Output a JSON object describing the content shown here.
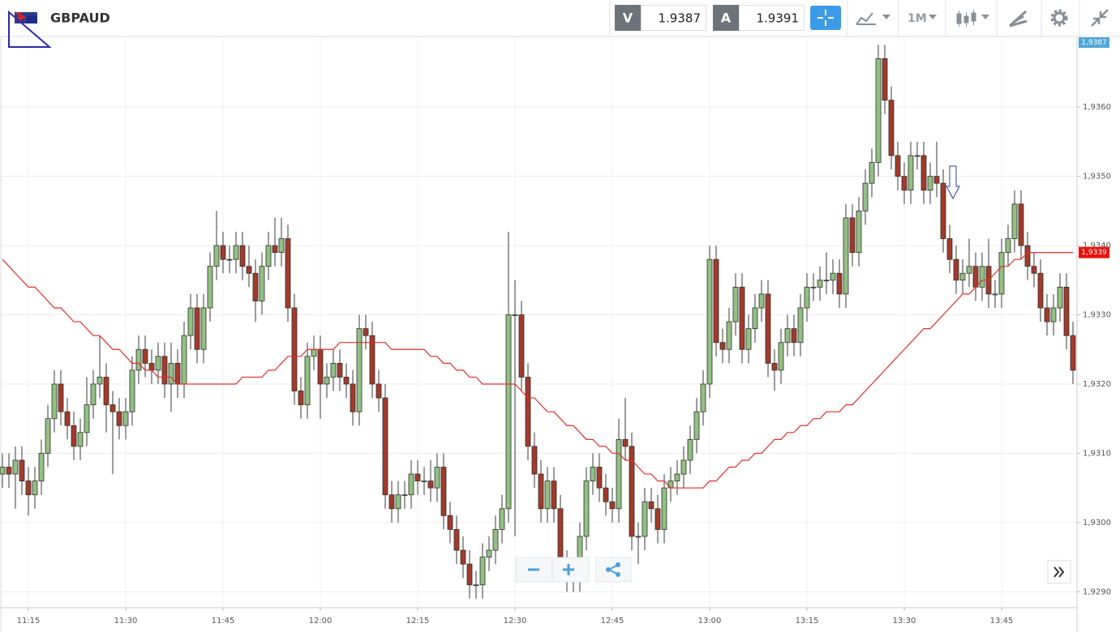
{
  "header": {
    "symbol": "GBPAUD",
    "bid_letter": "V",
    "bid": "1.9387",
    "ask_letter": "A",
    "ask": "1.9391",
    "timeframe": "1M"
  },
  "chart_data": {
    "type": "candlestick",
    "categories": [
      null,
      null,
      null,
      null,
      "11:15",
      null,
      null,
      null,
      null,
      null,
      null,
      null,
      null,
      null,
      null,
      null,
      null,
      null,
      null,
      "11:30",
      null,
      null,
      null,
      null,
      null,
      null,
      null,
      null,
      null,
      null,
      null,
      null,
      null,
      null,
      "11:45",
      null,
      null,
      null,
      null,
      null,
      null,
      null,
      null,
      null,
      null,
      null,
      null,
      null,
      null,
      "12:00",
      null,
      null,
      null,
      null,
      null,
      null,
      null,
      null,
      null,
      null,
      null,
      null,
      null,
      null,
      "12:15",
      null,
      null,
      null,
      null,
      null,
      null,
      null,
      null,
      null,
      null,
      null,
      null,
      null,
      null,
      "12:30",
      null,
      null,
      null,
      null,
      null,
      null,
      null,
      null,
      null,
      null,
      null,
      null,
      null,
      null,
      "12:45",
      null,
      null,
      null,
      null,
      null,
      null,
      null,
      null,
      null,
      null,
      null,
      null,
      null,
      null,
      "13:00",
      null,
      null,
      null,
      null,
      null,
      null,
      null,
      null,
      null,
      null,
      null,
      null,
      null,
      null,
      "13:15",
      null,
      null,
      null,
      null,
      null,
      null,
      null,
      null,
      null,
      null,
      null,
      null,
      null,
      null,
      "13:30",
      null,
      null,
      null,
      null,
      null,
      null,
      null,
      null,
      null,
      null,
      null,
      null,
      null,
      null,
      "13:45",
      null,
      null,
      null,
      null,
      null,
      null,
      null,
      null,
      null,
      null,
      null
    ],
    "open": [
      1.9307,
      1.9308,
      1.9307,
      1.9309,
      1.9306,
      1.9304,
      1.9306,
      1.931,
      1.9315,
      1.932,
      1.9316,
      1.9314,
      1.9311,
      1.9313,
      1.9317,
      1.932,
      1.9321,
      1.9317,
      1.9316,
      1.9314,
      1.9316,
      1.9322,
      1.9325,
      1.9323,
      1.9322,
      1.9324,
      1.932,
      1.9323,
      1.932,
      1.9327,
      1.9331,
      1.9325,
      1.9331,
      1.9337,
      1.934,
      1.9338,
      1.9338,
      1.934,
      1.9337,
      1.9336,
      1.9332,
      1.9337,
      1.934,
      1.9339,
      1.9341,
      1.9331,
      1.9319,
      1.9317,
      1.9324,
      1.9325,
      1.932,
      1.9321,
      1.9323,
      1.9321,
      1.932,
      1.9316,
      1.9328,
      1.9327,
      1.932,
      1.9318,
      1.9304,
      1.9302,
      1.9304,
      1.9304,
      1.9307,
      1.9306,
      1.9306,
      1.9305,
      1.9308,
      1.9301,
      1.9299,
      1.9296,
      1.9294,
      1.9291,
      1.9291,
      1.9295,
      1.9296,
      1.9299,
      1.9302,
      1.933,
      1.933,
      1.9321,
      1.9311,
      1.9307,
      1.9302,
      1.9306,
      1.9302,
      1.9294,
      1.9292,
      1.9292,
      1.9298,
      1.9306,
      1.9308,
      1.9305,
      1.9303,
      1.9302,
      1.9312,
      1.9311,
      1.9298,
      1.9298,
      1.9303,
      1.9302,
      1.9299,
      1.9305,
      1.9306,
      1.9307,
      1.9309,
      1.9312,
      1.9316,
      1.932,
      1.9338,
      1.9326,
      1.9325,
      1.9329,
      1.9334,
      1.9325,
      1.9328,
      1.9331,
      1.9333,
      1.9323,
      1.9322,
      1.9326,
      1.9328,
      1.9326,
      1.9331,
      1.9334,
      1.9334,
      1.9335,
      1.9335,
      1.9336,
      1.9333,
      1.9344,
      1.9339,
      1.9345,
      1.9349,
      1.9352,
      1.9367,
      1.9361,
      1.9353,
      1.935,
      1.9348,
      1.9353,
      1.9353,
      1.9348,
      1.935,
      1.9349,
      1.9341,
      1.9338,
      1.9335,
      1.9336,
      1.9337,
      1.9334,
      1.9337,
      1.9333,
      1.9333,
      1.9339,
      1.9341,
      1.9346,
      1.934,
      1.9337,
      1.9336,
      1.9331,
      1.9329,
      1.9331,
      1.9334,
      1.9327
    ],
    "high": [
      1.931,
      1.931,
      1.9311,
      1.9311,
      1.9308,
      1.9308,
      1.9312,
      1.9317,
      1.9322,
      1.9322,
      1.9318,
      1.9316,
      1.9315,
      1.9321,
      1.9322,
      1.9327,
      1.9323,
      1.9319,
      1.9318,
      1.9318,
      1.9324,
      1.9327,
      1.9327,
      1.9325,
      1.9326,
      1.9326,
      1.9326,
      1.9325,
      1.9329,
      1.9333,
      1.9333,
      1.9333,
      1.9339,
      1.9345,
      1.9342,
      1.934,
      1.9342,
      1.9342,
      1.934,
      1.9338,
      1.9339,
      1.9342,
      1.9344,
      1.9344,
      1.9343,
      1.9333,
      1.9321,
      1.9326,
      1.9327,
      1.9327,
      1.9323,
      1.9325,
      1.9325,
      1.9323,
      1.9322,
      1.933,
      1.933,
      1.9329,
      1.9322,
      1.932,
      1.9306,
      1.9306,
      1.9306,
      1.9309,
      1.9309,
      1.9308,
      1.9309,
      1.931,
      1.931,
      1.9303,
      1.9301,
      1.9298,
      1.9296,
      1.9293,
      1.9297,
      1.9298,
      1.9301,
      1.9304,
      1.9342,
      1.9335,
      1.9332,
      1.9323,
      1.9313,
      1.9309,
      1.9308,
      1.9308,
      1.9304,
      1.9296,
      1.9294,
      1.93,
      1.9308,
      1.931,
      1.931,
      1.9307,
      1.9305,
      1.9315,
      1.9318,
      1.9313,
      1.93,
      1.9305,
      1.9305,
      1.9304,
      1.9307,
      1.9308,
      1.9309,
      1.9311,
      1.9314,
      1.9318,
      1.9322,
      1.934,
      1.934,
      1.9328,
      1.9331,
      1.9336,
      1.9336,
      1.933,
      1.9333,
      1.9335,
      1.9335,
      1.9325,
      1.9328,
      1.933,
      1.933,
      1.9333,
      1.9336,
      1.9336,
      1.9337,
      1.9339,
      1.9338,
      1.9338,
      1.9346,
      1.9346,
      1.9347,
      1.9351,
      1.9354,
      1.9369,
      1.9369,
      1.9363,
      1.9355,
      1.9352,
      1.9355,
      1.9355,
      1.9355,
      1.9352,
      1.9355,
      1.9351,
      1.9343,
      1.934,
      1.9338,
      1.9341,
      1.9339,
      1.9339,
      1.9341,
      1.9335,
      1.9341,
      1.9343,
      1.9348,
      1.9348,
      1.9342,
      1.9339,
      1.9338,
      1.9333,
      1.9333,
      1.9336,
      1.9336,
      1.9329
    ],
    "low": [
      1.9305,
      1.9305,
      1.9302,
      1.9304,
      1.9301,
      1.9302,
      1.9304,
      1.9308,
      1.9313,
      1.9314,
      1.9312,
      1.9309,
      1.9309,
      1.9311,
      1.9315,
      1.9318,
      1.9313,
      1.9307,
      1.9312,
      1.9312,
      1.9314,
      1.932,
      1.9321,
      1.932,
      1.932,
      1.9318,
      1.9316,
      1.9318,
      1.9318,
      1.9325,
      1.9323,
      1.9323,
      1.9329,
      1.9335,
      1.9336,
      1.9336,
      1.9336,
      1.9335,
      1.9334,
      1.9329,
      1.933,
      1.9335,
      1.9337,
      1.9337,
      1.9329,
      1.9317,
      1.9315,
      1.9315,
      1.9322,
      1.9315,
      1.9318,
      1.9319,
      1.9319,
      1.9318,
      1.9314,
      1.9314,
      1.9325,
      1.9318,
      1.9316,
      1.9302,
      1.93,
      1.93,
      1.9302,
      1.9302,
      1.9304,
      1.9304,
      1.9303,
      1.9303,
      1.9299,
      1.9297,
      1.9294,
      1.9292,
      1.9289,
      1.9289,
      1.9289,
      1.9293,
      1.9294,
      1.9297,
      1.93,
      1.9298,
      1.9319,
      1.9309,
      1.9305,
      1.93,
      1.93,
      1.93,
      1.9292,
      1.929,
      1.929,
      1.929,
      1.9296,
      1.9304,
      1.9303,
      1.9301,
      1.93,
      1.93,
      1.9309,
      1.9296,
      1.9294,
      1.9296,
      1.93,
      1.9297,
      1.9297,
      1.9303,
      1.9304,
      1.9305,
      1.9307,
      1.931,
      1.9314,
      1.9318,
      1.9324,
      1.9323,
      1.9323,
      1.9327,
      1.9323,
      1.9323,
      1.9326,
      1.9329,
      1.9321,
      1.9319,
      1.932,
      1.9324,
      1.9324,
      1.9324,
      1.9329,
      1.9332,
      1.9332,
      1.9333,
      1.9333,
      1.9331,
      1.9331,
      1.9337,
      1.9337,
      1.9343,
      1.9347,
      1.935,
      1.9359,
      1.9351,
      1.9348,
      1.9346,
      1.9346,
      1.9351,
      1.9346,
      1.9346,
      1.9347,
      1.9339,
      1.9336,
      1.9333,
      1.9333,
      1.9334,
      1.9332,
      1.9332,
      1.9331,
      1.9331,
      1.9331,
      1.9337,
      1.9339,
      1.9338,
      1.9335,
      1.9334,
      1.9329,
      1.9327,
      1.9327,
      1.9329,
      1.9325,
      1.932
    ],
    "close": [
      1.9308,
      1.9307,
      1.9309,
      1.9306,
      1.9304,
      1.9306,
      1.931,
      1.9315,
      1.932,
      1.9316,
      1.9314,
      1.9311,
      1.9313,
      1.9317,
      1.932,
      1.9321,
      1.9317,
      1.9316,
      1.9314,
      1.9316,
      1.9322,
      1.9325,
      1.9323,
      1.9322,
      1.9324,
      1.932,
      1.9323,
      1.932,
      1.9327,
      1.9331,
      1.9325,
      1.9331,
      1.9337,
      1.934,
      1.9338,
      1.9338,
      1.934,
      1.9337,
      1.9336,
      1.9332,
      1.9337,
      1.934,
      1.9339,
      1.9341,
      1.9331,
      1.9319,
      1.9317,
      1.9324,
      1.9325,
      1.932,
      1.9321,
      1.9323,
      1.9321,
      1.932,
      1.9316,
      1.9328,
      1.9327,
      1.932,
      1.9318,
      1.9304,
      1.9302,
      1.9304,
      1.9304,
      1.9307,
      1.9306,
      1.9306,
      1.9305,
      1.9308,
      1.9301,
      1.9299,
      1.9296,
      1.9294,
      1.9291,
      1.9291,
      1.9295,
      1.9296,
      1.9299,
      1.9302,
      1.933,
      1.933,
      1.9321,
      1.9311,
      1.9307,
      1.9302,
      1.9306,
      1.9302,
      1.9294,
      1.9292,
      1.9292,
      1.9298,
      1.9306,
      1.9308,
      1.9305,
      1.9303,
      1.9302,
      1.9312,
      1.9311,
      1.9298,
      1.9298,
      1.9303,
      1.9302,
      1.9299,
      1.9305,
      1.9306,
      1.9307,
      1.9309,
      1.9312,
      1.9316,
      1.932,
      1.9338,
      1.9326,
      1.9325,
      1.9329,
      1.9334,
      1.9325,
      1.9328,
      1.9331,
      1.9333,
      1.9323,
      1.9322,
      1.9326,
      1.9328,
      1.9326,
      1.9331,
      1.9334,
      1.9334,
      1.9335,
      1.9335,
      1.9336,
      1.9333,
      1.9344,
      1.9339,
      1.9345,
      1.9349,
      1.9352,
      1.9367,
      1.9361,
      1.9353,
      1.935,
      1.9348,
      1.9353,
      1.9353,
      1.9348,
      1.935,
      1.9349,
      1.9341,
      1.9338,
      1.9335,
      1.9336,
      1.9337,
      1.9334,
      1.9337,
      1.9333,
      1.9333,
      1.9339,
      1.9341,
      1.9346,
      1.934,
      1.9337,
      1.9336,
      1.9331,
      1.9329,
      1.9331,
      1.9334,
      1.9327,
      1.9322
    ],
    "up_color": "#93c083",
    "down_color": "#a33b2a",
    "moving_average": {
      "color": "#e0302a",
      "values": [
        1.9338,
        1.9337,
        1.9336,
        1.9335,
        1.9334,
        1.9334,
        1.9333,
        1.9332,
        1.9331,
        1.9331,
        1.933,
        1.9329,
        1.9329,
        1.9328,
        1.9327,
        1.9327,
        1.9326,
        1.9325,
        1.9325,
        1.9324,
        1.9323,
        1.9323,
        1.9322,
        1.9322,
        1.9321,
        1.9321,
        1.9321,
        1.932,
        1.932,
        1.932,
        1.932,
        1.932,
        1.932,
        1.932,
        1.932,
        1.932,
        1.932,
        1.9321,
        1.9321,
        1.9321,
        1.9321,
        1.9322,
        1.9322,
        1.9323,
        1.9324,
        1.9324,
        1.9324,
        1.9325,
        1.9325,
        1.9325,
        1.9325,
        1.9325,
        1.9326,
        1.9326,
        1.9326,
        1.9326,
        1.9326,
        1.9326,
        1.9326,
        1.9326,
        1.9325,
        1.9325,
        1.9325,
        1.9325,
        1.9325,
        1.9325,
        1.9324,
        1.9324,
        1.9323,
        1.9323,
        1.9322,
        1.9322,
        1.9321,
        1.9321,
        1.932,
        1.932,
        1.932,
        1.932,
        1.932,
        1.932,
        1.9319,
        1.9318,
        1.9318,
        1.9317,
        1.9316,
        1.9316,
        1.9315,
        1.9314,
        1.9314,
        1.9313,
        1.9312,
        1.9312,
        1.9311,
        1.9311,
        1.931,
        1.931,
        1.9309,
        1.9309,
        1.9308,
        1.9307,
        1.9307,
        1.9306,
        1.9306,
        1.9305,
        1.9305,
        1.9305,
        1.9305,
        1.9305,
        1.9305,
        1.9306,
        1.9306,
        1.9307,
        1.9308,
        1.9308,
        1.9309,
        1.9309,
        1.931,
        1.931,
        1.9311,
        1.9312,
        1.9312,
        1.9313,
        1.9313,
        1.9314,
        1.9314,
        1.9315,
        1.9315,
        1.9316,
        1.9316,
        1.9316,
        1.9317,
        1.9317,
        1.9318,
        1.9319,
        1.932,
        1.9321,
        1.9322,
        1.9323,
        1.9324,
        1.9325,
        1.9326,
        1.9327,
        1.9328,
        1.9328,
        1.9329,
        1.933,
        1.9331,
        1.9332,
        1.9333,
        1.9333,
        1.9334,
        1.9335,
        1.9335,
        1.9336,
        1.9337,
        1.9337,
        1.9338,
        1.9338,
        1.9339,
        1.9339,
        1.9339,
        1.9339,
        1.9339,
        1.9339,
        1.9339,
        1.9339
      ]
    },
    "ma_tag": {
      "value": 1.9339,
      "label": "1,9339",
      "color": "#e8120c"
    },
    "bid_tag": "1,9387",
    "ylim": [
      1.92877,
      1.93702
    ],
    "yticks": [
      {
        "value": 1.929,
        "label": "1,9290"
      },
      {
        "value": 1.93,
        "label": "1,9300"
      },
      {
        "value": 1.931,
        "label": "1,9310"
      },
      {
        "value": 1.932,
        "label": "1,9320"
      },
      {
        "value": 1.933,
        "label": "1,9330"
      },
      {
        "value": 1.934,
        "label": "1,9340"
      },
      {
        "value": 1.935,
        "label": "1,9350"
      },
      {
        "value": 1.936,
        "label": "1,9360"
      }
    ],
    "grid": true
  }
}
